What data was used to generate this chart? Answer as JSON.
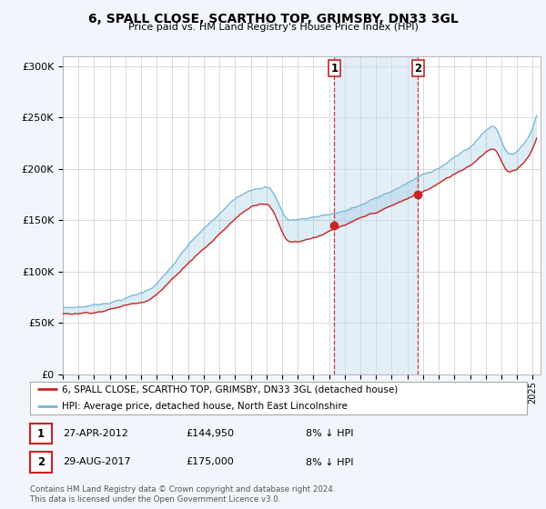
{
  "title": "6, SPALL CLOSE, SCARTHO TOP, GRIMSBY, DN33 3GL",
  "subtitle": "Price paid vs. HM Land Registry's House Price Index (HPI)",
  "background_color": "#f2f5fb",
  "plot_bg_color": "#ffffff",
  "hpi_color": "#7ab8d9",
  "price_color": "#cc2222",
  "shade_color": "#c8dff0",
  "marker1_x_year": 2012.33,
  "marker2_x_year": 2017.67,
  "marker1_label": "1",
  "marker2_label": "2",
  "marker1_value": 144950,
  "marker2_value": 175000,
  "marker1_date": "27-APR-2012",
  "marker2_date": "29-AUG-2017",
  "marker1_pct": "8% ↓ HPI",
  "marker2_pct": "8% ↓ HPI",
  "legend_line1": "6, SPALL CLOSE, SCARTHO TOP, GRIMSBY, DN33 3GL (detached house)",
  "legend_line2": "HPI: Average price, detached house, North East Lincolnshire",
  "footer1": "Contains HM Land Registry data © Crown copyright and database right 2024.",
  "footer2": "This data is licensed under the Open Government Licence v3.0.",
  "ylim": [
    0,
    310000
  ],
  "yticks": [
    0,
    50000,
    100000,
    150000,
    200000,
    250000,
    300000
  ],
  "xmin": 1995.0,
  "xmax": 2025.5
}
